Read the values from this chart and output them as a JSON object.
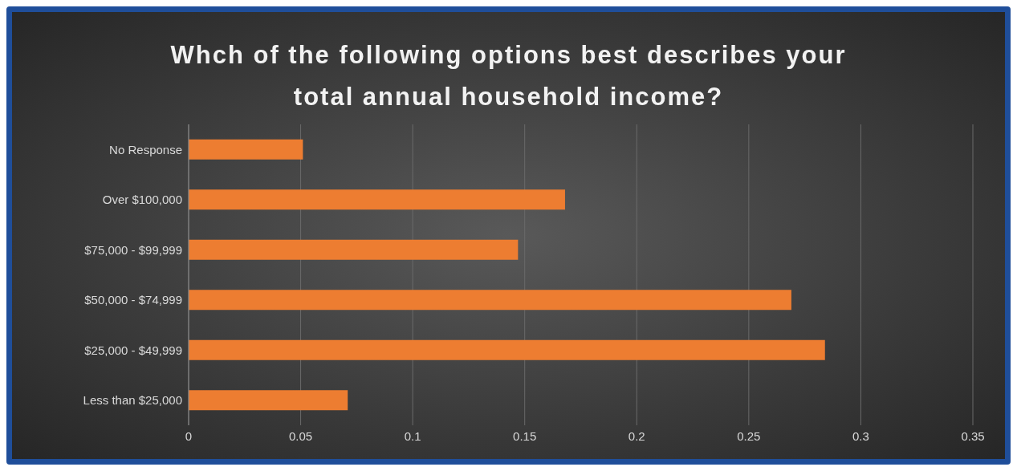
{
  "chart_data": {
    "type": "bar",
    "orientation": "horizontal",
    "title": "Whch of the following options best describes your total annual household income?",
    "categories": [
      "No Response",
      "Over $100,000",
      "$75,000 - $99,999",
      "$50,000 - $74,999",
      "$25,000 - $49,999",
      "Less than $25,000"
    ],
    "values": [
      0.051,
      0.168,
      0.147,
      0.269,
      0.284,
      0.071
    ],
    "color": "#ed7d31",
    "xlim": [
      0,
      0.35
    ],
    "xticks": [
      0,
      0.05,
      0.1,
      0.15,
      0.2,
      0.25,
      0.3,
      0.35
    ],
    "grid": "x"
  }
}
